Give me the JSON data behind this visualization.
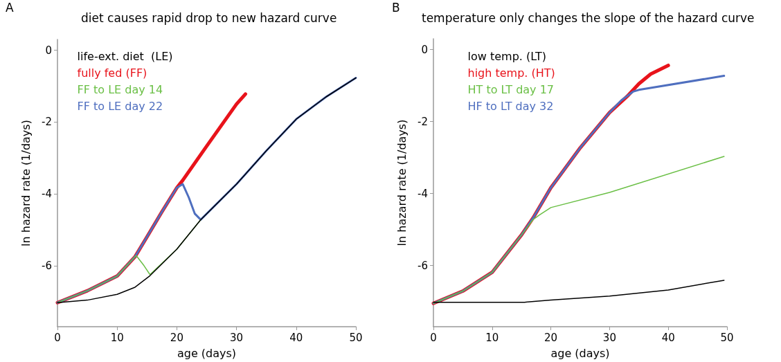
{
  "chart_data": [
    {
      "type": "line",
      "title": "diet causes rapid drop to new hazard curve",
      "xlabel": "age (days)",
      "ylabel": "ln hazard rate (1/days)",
      "annotations": [
        "A"
      ],
      "xlim": [
        0,
        50
      ],
      "xticks": [
        0,
        10,
        20,
        30,
        40,
        50
      ],
      "ylim": [
        -7.7,
        0.3
      ],
      "yticks": [
        -6,
        -4,
        -2,
        0
      ],
      "grid": false,
      "legend": "top left",
      "marker": "none",
      "line_style": "solid",
      "series": [
        {
          "name": "life-ext. diet  (LE)",
          "color": "#000000",
          "x": [
            0,
            5,
            10,
            13,
            15.5,
            20,
            24,
            30,
            35,
            40,
            45,
            50
          ],
          "values": [
            -7.03,
            -6.96,
            -6.8,
            -6.6,
            -6.28,
            -5.54,
            -4.72,
            -3.73,
            -2.8,
            -1.92,
            -1.3,
            -0.77
          ]
        },
        {
          "name": "fully fed (FF)",
          "color": "#e8131b",
          "x": [
            0,
            5,
            10,
            13,
            15,
            17.5,
            20,
            21,
            25,
            30,
            31.5
          ],
          "values": [
            -7.03,
            -6.7,
            -6.29,
            -5.75,
            -5.2,
            -4.5,
            -3.83,
            -3.62,
            -2.67,
            -1.5,
            -1.22
          ]
        },
        {
          "name": "FF to LE day 14",
          "color": "#6abf45",
          "x": [
            0,
            5,
            10,
            13,
            13.2,
            14.5,
            15.5,
            20,
            24
          ],
          "values": [
            -7.03,
            -6.7,
            -6.29,
            -5.75,
            -5.72,
            -6.0,
            -6.25,
            -5.54,
            -4.72
          ]
        },
        {
          "name": "FF to LE day 22",
          "color": "#4f6fbf",
          "x": [
            0,
            5,
            10,
            13,
            15,
            17.5,
            20,
            21,
            22,
            23,
            24,
            30,
            35,
            40,
            45,
            50
          ],
          "values": [
            -7.03,
            -6.7,
            -6.29,
            -5.75,
            -5.2,
            -4.5,
            -3.83,
            -3.73,
            -4.1,
            -4.55,
            -4.72,
            -3.73,
            -2.8,
            -1.92,
            -1.3,
            -0.77
          ]
        }
      ]
    },
    {
      "type": "line",
      "title": "temperature only changes the slope of the hazard curve",
      "xlabel": "age (days)",
      "ylabel": "ln hazard rate (1/days)",
      "annotations": [
        "B"
      ],
      "xlim": [
        0,
        50
      ],
      "xticks": [
        0,
        10,
        20,
        30,
        40,
        50
      ],
      "ylim": [
        -7.7,
        0.3
      ],
      "yticks": [
        -6,
        -4,
        -2,
        0
      ],
      "grid": false,
      "legend": "top left",
      "marker": "none",
      "line_style": "solid",
      "series": [
        {
          "name": "low temp. (LT)",
          "color": "#000000",
          "x": [
            0,
            15.5,
            20,
            30,
            40,
            49.5
          ],
          "values": [
            -7.02,
            -7.02,
            -6.96,
            -6.85,
            -6.68,
            -6.41
          ]
        },
        {
          "name": "high temp. (HT)",
          "color": "#e8131b",
          "x": [
            0,
            5,
            10,
            15,
            17,
            20,
            25,
            30,
            33,
            35,
            37,
            40
          ],
          "values": [
            -7.05,
            -6.71,
            -6.19,
            -5.15,
            -4.67,
            -3.84,
            -2.73,
            -1.75,
            -1.3,
            -0.95,
            -0.68,
            -0.44
          ]
        },
        {
          "name": "HT to LT day 17",
          "color": "#6abf45",
          "x": [
            0,
            5,
            10,
            15,
            17,
            18,
            20,
            30,
            49.5
          ],
          "values": [
            -7.05,
            -6.71,
            -6.19,
            -5.15,
            -4.72,
            -4.6,
            -4.39,
            -3.97,
            -2.97
          ]
        },
        {
          "name": "HF to LT day 32",
          "color": "#4f6fbf",
          "x": [
            0,
            5,
            10,
            15,
            17,
            20,
            25,
            30,
            32,
            34,
            35,
            49.5
          ],
          "values": [
            -7.05,
            -6.71,
            -6.19,
            -5.15,
            -4.67,
            -3.84,
            -2.73,
            -1.75,
            -1.41,
            -1.17,
            -1.12,
            -0.73
          ]
        }
      ]
    }
  ]
}
